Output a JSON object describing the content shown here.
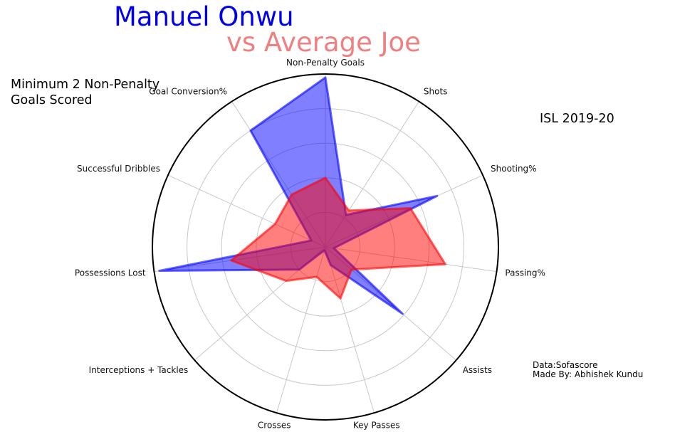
{
  "chart_data": {
    "type": "radar",
    "title": "Manuel Onwu",
    "subtitle": "vs Average Joe",
    "note": "Minimum 2 Non-Penalty Goals Scored",
    "season": "ISL 2019-20",
    "credits": [
      "Data:Sofascore",
      "Made By: Abhishek Kundu"
    ],
    "axes": [
      "Non-Penalty Goals",
      "Shots",
      "Shooting%",
      "Passing%",
      "Assists",
      "Key Passes",
      "Crosses",
      "Interceptions + Tackles",
      "Possessions Lost",
      "Successful Dribbles",
      "Goal Conversion%"
    ],
    "rlim": [
      0,
      5
    ],
    "grid": true,
    "series": [
      {
        "values": [
          4.9,
          1.1,
          3.55,
          0.25,
          2.95,
          0.55,
          0.1,
          1.0,
          4.85,
          0.45,
          4.0
        ],
        "color": "#0000ff"
      },
      {
        "values": [
          2.0,
          1.25,
          2.7,
          3.5,
          1.0,
          1.55,
          0.9,
          1.5,
          2.75,
          1.6,
          1.8
        ],
        "color": "#ff0000"
      }
    ]
  }
}
